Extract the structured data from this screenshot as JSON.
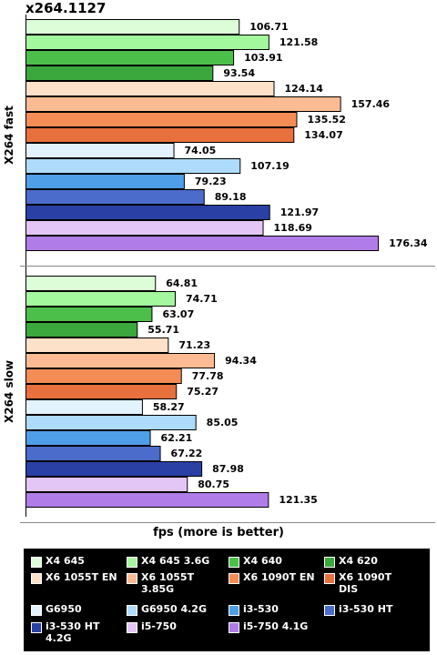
{
  "chart_data": {
    "type": "bar",
    "orientation": "horizontal",
    "title": "x264.1127",
    "xlabel": "fps (more is better)",
    "xlim": [
      0,
      180
    ],
    "legend_position": "bottom",
    "groups": [
      {
        "label": "X264 fast",
        "values": [
          106.71,
          121.58,
          103.91,
          93.54,
          124.14,
          157.46,
          135.52,
          134.07,
          74.05,
          107.19,
          79.23,
          89.18,
          121.97,
          118.69,
          176.34
        ]
      },
      {
        "label": "X264 slow",
        "values": [
          64.81,
          74.71,
          63.07,
          55.71,
          71.23,
          94.34,
          77.78,
          75.27,
          58.27,
          85.05,
          62.21,
          67.22,
          87.98,
          80.75,
          121.35
        ]
      }
    ],
    "series": [
      {
        "name": "X4 645",
        "color": "#ddfcd8"
      },
      {
        "name": "X4 645 3.6G",
        "color": "#a3f79c"
      },
      {
        "name": "X4 640",
        "color": "#4cbf4a"
      },
      {
        "name": "X4 620",
        "color": "#3aa83c"
      },
      {
        "name": "X6 1055T EN",
        "color": "#fde1c9"
      },
      {
        "name": "X6 1055T 3.85G",
        "color": "#fcbb92"
      },
      {
        "name": "X6 1090T EN",
        "color": "#f48c55"
      },
      {
        "name": "X6 1090T DIS",
        "color": "#e8703d"
      },
      {
        "name": "G6950",
        "color": "#e3f3fd"
      },
      {
        "name": "G6950 4.2G",
        "color": "#aedbfb"
      },
      {
        "name": "i3-530",
        "color": "#4f9ee8"
      },
      {
        "name": "i3-530 HT",
        "color": "#4b6ccb"
      },
      {
        "name": "i3-530 HT 4.2G",
        "color": "#2a40a5"
      },
      {
        "name": "i5-750",
        "color": "#e3c6f6"
      },
      {
        "name": "i5-750 4.1G",
        "color": "#b07ce8"
      }
    ]
  }
}
